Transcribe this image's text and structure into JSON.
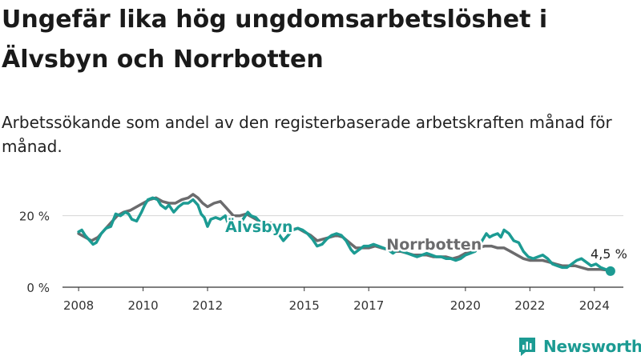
{
  "title": "Ungefär lika hög ungdomsarbetslöshet i Älvsbyn och Norrbotten",
  "subtitle": "Arbetssökande som andel av den registerbaserade arbetskraften månad för månad.",
  "logo": {
    "text": "Newsworthy",
    "icon": "newsworthy-logo-icon",
    "color": "#1c9b93"
  },
  "chart_data": {
    "type": "line",
    "x_range": [
      2007.5,
      2024.9
    ],
    "ylim": [
      0,
      30
    ],
    "y_ticks": [
      {
        "value": 0,
        "label": "0 %"
      },
      {
        "value": 20,
        "label": "20 %"
      }
    ],
    "x_ticks": [
      {
        "value": 2008,
        "label": "2008"
      },
      {
        "value": 2010,
        "label": "2010"
      },
      {
        "value": 2012,
        "label": "2012"
      },
      {
        "value": 2015,
        "label": "2015"
      },
      {
        "value": 2017,
        "label": "2017"
      },
      {
        "value": 2020,
        "label": "2020"
      },
      {
        "value": 2022,
        "label": "2022"
      },
      {
        "value": 2024,
        "label": "2024"
      }
    ],
    "grid": "horizontal",
    "end_label": "4,5 %",
    "series": [
      {
        "name": "Älvsbyn",
        "color": "#1c9b93",
        "points": [
          [
            2008.0,
            15.5
          ],
          [
            2008.1,
            16.0
          ],
          [
            2008.2,
            14.5
          ],
          [
            2008.35,
            13.0
          ],
          [
            2008.45,
            12.0
          ],
          [
            2008.55,
            12.5
          ],
          [
            2008.7,
            15.0
          ],
          [
            2008.85,
            16.5
          ],
          [
            2009.0,
            17.0
          ],
          [
            2009.15,
            20.5
          ],
          [
            2009.3,
            20.0
          ],
          [
            2009.45,
            21.0
          ],
          [
            2009.55,
            20.5
          ],
          [
            2009.65,
            19.0
          ],
          [
            2009.8,
            18.5
          ],
          [
            2009.95,
            21.0
          ],
          [
            2010.05,
            23.0
          ],
          [
            2010.15,
            24.5
          ],
          [
            2010.3,
            25.0
          ],
          [
            2010.45,
            24.5
          ],
          [
            2010.55,
            23.0
          ],
          [
            2010.7,
            22.0
          ],
          [
            2010.8,
            23.0
          ],
          [
            2010.95,
            21.0
          ],
          [
            2011.1,
            22.5
          ],
          [
            2011.25,
            23.5
          ],
          [
            2011.4,
            23.5
          ],
          [
            2011.55,
            24.5
          ],
          [
            2011.7,
            23.0
          ],
          [
            2011.8,
            20.5
          ],
          [
            2011.9,
            19.5
          ],
          [
            2012.0,
            17.0
          ],
          [
            2012.1,
            19.0
          ],
          [
            2012.25,
            19.5
          ],
          [
            2012.4,
            19.0
          ],
          [
            2012.55,
            20.0
          ],
          [
            2012.65,
            17.5
          ],
          [
            2012.8,
            16.5
          ],
          [
            2012.95,
            17.0
          ],
          [
            2013.1,
            19.0
          ],
          [
            2013.25,
            21.0
          ],
          [
            2013.35,
            20.0
          ],
          [
            2013.5,
            19.5
          ],
          [
            2013.65,
            18.0
          ],
          [
            2013.8,
            17.0
          ],
          [
            2013.95,
            17.5
          ],
          [
            2014.05,
            16.0
          ],
          [
            2014.2,
            15.0
          ],
          [
            2014.35,
            13.0
          ],
          [
            2014.5,
            14.5
          ],
          [
            2014.65,
            16.0
          ],
          [
            2014.8,
            16.5
          ],
          [
            2014.95,
            16.0
          ],
          [
            2015.1,
            15.0
          ],
          [
            2015.25,
            13.5
          ],
          [
            2015.4,
            11.5
          ],
          [
            2015.55,
            12.0
          ],
          [
            2015.7,
            13.5
          ],
          [
            2015.85,
            14.5
          ],
          [
            2016.0,
            15.0
          ],
          [
            2016.15,
            14.5
          ],
          [
            2016.3,
            13.0
          ],
          [
            2016.45,
            10.5
          ],
          [
            2016.55,
            9.5
          ],
          [
            2016.7,
            10.5
          ],
          [
            2016.85,
            11.5
          ],
          [
            2017.0,
            11.5
          ],
          [
            2017.15,
            12.0
          ],
          [
            2017.3,
            11.5
          ],
          [
            2017.45,
            11.0
          ],
          [
            2017.6,
            10.5
          ],
          [
            2017.75,
            9.5
          ],
          [
            2017.9,
            10.5
          ],
          [
            2018.05,
            10.0
          ],
          [
            2018.2,
            9.5
          ],
          [
            2018.35,
            9.0
          ],
          [
            2018.5,
            8.5
          ],
          [
            2018.65,
            9.0
          ],
          [
            2018.8,
            9.5
          ],
          [
            2018.95,
            9.0
          ],
          [
            2019.1,
            8.5
          ],
          [
            2019.25,
            8.5
          ],
          [
            2019.4,
            8.0
          ],
          [
            2019.55,
            8.0
          ],
          [
            2019.7,
            7.5
          ],
          [
            2019.85,
            8.0
          ],
          [
            2020.0,
            9.0
          ],
          [
            2020.15,
            9.5
          ],
          [
            2020.3,
            10.0
          ],
          [
            2020.45,
            12.0
          ],
          [
            2020.55,
            13.5
          ],
          [
            2020.65,
            15.0
          ],
          [
            2020.75,
            14.0
          ],
          [
            2020.85,
            14.5
          ],
          [
            2021.0,
            15.0
          ],
          [
            2021.1,
            14.0
          ],
          [
            2021.2,
            16.0
          ],
          [
            2021.35,
            15.0
          ],
          [
            2021.5,
            13.0
          ],
          [
            2021.65,
            12.5
          ],
          [
            2021.8,
            10.0
          ],
          [
            2021.95,
            8.5
          ],
          [
            2022.1,
            8.0
          ],
          [
            2022.25,
            8.5
          ],
          [
            2022.4,
            9.0
          ],
          [
            2022.55,
            8.0
          ],
          [
            2022.7,
            6.5
          ],
          [
            2022.85,
            6.0
          ],
          [
            2023.0,
            5.5
          ],
          [
            2023.15,
            5.5
          ],
          [
            2023.3,
            6.5
          ],
          [
            2023.45,
            7.5
          ],
          [
            2023.6,
            8.0
          ],
          [
            2023.75,
            7.0
          ],
          [
            2023.9,
            6.0
          ],
          [
            2024.05,
            6.5
          ],
          [
            2024.2,
            5.5
          ],
          [
            2024.35,
            5.0
          ],
          [
            2024.5,
            4.5
          ]
        ]
      },
      {
        "name": "Norrbotten",
        "color": "#6b6b6d",
        "points": [
          [
            2008.0,
            15.0
          ],
          [
            2008.2,
            14.0
          ],
          [
            2008.4,
            13.0
          ],
          [
            2008.6,
            14.0
          ],
          [
            2008.8,
            16.0
          ],
          [
            2009.0,
            18.0
          ],
          [
            2009.2,
            20.0
          ],
          [
            2009.4,
            21.0
          ],
          [
            2009.6,
            21.5
          ],
          [
            2009.8,
            22.5
          ],
          [
            2010.0,
            23.5
          ],
          [
            2010.2,
            24.5
          ],
          [
            2010.4,
            25.0
          ],
          [
            2010.6,
            24.0
          ],
          [
            2010.8,
            23.5
          ],
          [
            2011.0,
            23.5
          ],
          [
            2011.2,
            24.5
          ],
          [
            2011.4,
            25.0
          ],
          [
            2011.55,
            26.0
          ],
          [
            2011.7,
            25.0
          ],
          [
            2011.85,
            23.5
          ],
          [
            2012.0,
            22.5
          ],
          [
            2012.2,
            23.5
          ],
          [
            2012.4,
            24.0
          ],
          [
            2012.6,
            22.0
          ],
          [
            2012.8,
            20.0
          ],
          [
            2013.0,
            20.0
          ],
          [
            2013.2,
            20.5
          ],
          [
            2013.4,
            19.5
          ],
          [
            2013.6,
            18.5
          ],
          [
            2013.8,
            18.0
          ],
          [
            2014.0,
            18.0
          ],
          [
            2014.2,
            17.0
          ],
          [
            2014.4,
            16.0
          ],
          [
            2014.6,
            16.0
          ],
          [
            2014.8,
            16.5
          ],
          [
            2015.0,
            15.5
          ],
          [
            2015.2,
            14.5
          ],
          [
            2015.4,
            13.0
          ],
          [
            2015.6,
            13.5
          ],
          [
            2015.8,
            14.0
          ],
          [
            2016.0,
            14.5
          ],
          [
            2016.2,
            14.0
          ],
          [
            2016.4,
            12.5
          ],
          [
            2016.6,
            11.0
          ],
          [
            2016.8,
            11.0
          ],
          [
            2017.0,
            11.0
          ],
          [
            2017.2,
            11.5
          ],
          [
            2017.4,
            11.0
          ],
          [
            2017.6,
            10.5
          ],
          [
            2017.8,
            10.0
          ],
          [
            2018.0,
            10.0
          ],
          [
            2018.2,
            9.5
          ],
          [
            2018.4,
            9.0
          ],
          [
            2018.6,
            9.0
          ],
          [
            2018.8,
            9.0
          ],
          [
            2019.0,
            8.5
          ],
          [
            2019.2,
            8.5
          ],
          [
            2019.4,
            8.5
          ],
          [
            2019.6,
            8.0
          ],
          [
            2019.8,
            8.5
          ],
          [
            2020.0,
            9.5
          ],
          [
            2020.2,
            10.0
          ],
          [
            2020.4,
            11.0
          ],
          [
            2020.6,
            11.5
          ],
          [
            2020.8,
            11.5
          ],
          [
            2021.0,
            11.0
          ],
          [
            2021.2,
            11.0
          ],
          [
            2021.4,
            10.0
          ],
          [
            2021.6,
            9.0
          ],
          [
            2021.8,
            8.0
          ],
          [
            2022.0,
            7.5
          ],
          [
            2022.2,
            7.5
          ],
          [
            2022.4,
            7.5
          ],
          [
            2022.6,
            7.0
          ],
          [
            2022.8,
            6.5
          ],
          [
            2023.0,
            6.0
          ],
          [
            2023.2,
            6.0
          ],
          [
            2023.4,
            6.0
          ],
          [
            2023.6,
            5.5
          ],
          [
            2023.8,
            5.0
          ],
          [
            2024.0,
            5.0
          ],
          [
            2024.2,
            5.0
          ],
          [
            2024.4,
            4.8
          ],
          [
            2024.5,
            4.6
          ]
        ]
      }
    ],
    "series_labels": [
      {
        "text": "Älvsbyn",
        "series": "Älvsbyn",
        "at": [
          2012.55,
          15.5
        ]
      },
      {
        "text": "Norrbotten",
        "series": "Norrbotten",
        "at": [
          2017.55,
          10.5
        ]
      }
    ]
  }
}
